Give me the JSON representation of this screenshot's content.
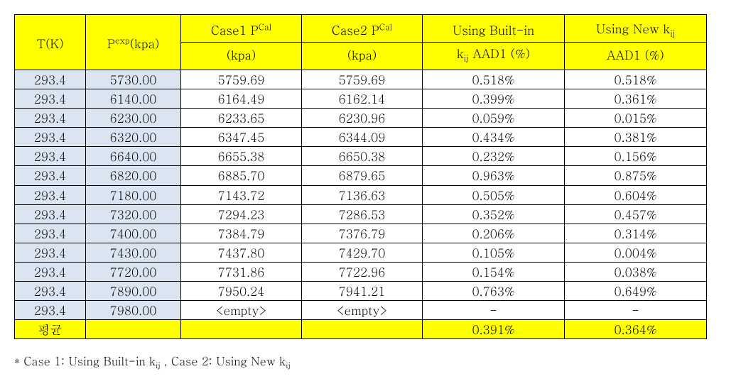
{
  "table": {
    "columns": [
      {
        "line1": "T(K)",
        "line2": ""
      },
      {
        "line1": "Pexp(kpa)",
        "line2": ""
      },
      {
        "line1": "Case1 PCal",
        "line2": "(kpa)"
      },
      {
        "line1": "Case2 PCal",
        "line2": "(kpa)"
      },
      {
        "line1": "Using Built-in",
        "line2": "kij AAD1 (%)"
      },
      {
        "line1": "Using New kij",
        "line2": "AAD1 (%)"
      }
    ],
    "header_html": {
      "c1_l1": "T(K)",
      "c2_l1": "P<sup>exp</sup>(kpa)",
      "c3_l1": "Case1 P<sup>Cal</sup>",
      "c3_l2": "(kpa)",
      "c4_l1": "Case2 P<sup>Cal</sup>",
      "c4_l2": "(kpa)",
      "c5_l1": "Using Built-in",
      "c5_l2": "k<sub>ij</sub> AAD1 (%)",
      "c6_l1": "Using New k<sub>ij</sub>",
      "c6_l2": "AAD1 (%)"
    },
    "rows": [
      [
        "293.4",
        "5730.00",
        "5759.69",
        "5759.69",
        "0.518%",
        "0.518%"
      ],
      [
        "293.4",
        "6140.00",
        "6164.49",
        "6162.14",
        "0.399%",
        "0.361%"
      ],
      [
        "293.4",
        "6230.00",
        "6233.65",
        "6230.96",
        "0.059%",
        "0.015%"
      ],
      [
        "293.4",
        "6320.00",
        "6347.45",
        "6344.09",
        "0.434%",
        "0.381%"
      ],
      [
        "293.4",
        "6640.00",
        "6655.38",
        "6650.38",
        "0.232%",
        "0.156%"
      ],
      [
        "293.4",
        "6820.00",
        "6885.70",
        "6879.65",
        "0.963%",
        "0.875%"
      ],
      [
        "293.4",
        "7180.00",
        "7143.72",
        "7136.63",
        "0.505%",
        "0.604%"
      ],
      [
        "293.4",
        "7320.00",
        "7294.23",
        "7286.53",
        "0.352%",
        "0.457%"
      ],
      [
        "293.4",
        "7400.00",
        "7384.79",
        "7376.79",
        "0.206%",
        "0.314%"
      ],
      [
        "293.4",
        "7430.00",
        "7437.80",
        "7429.70",
        "0.105%",
        "0.004%"
      ],
      [
        "293.4",
        "7720.00",
        "7731.86",
        "7722.96",
        "0.154%",
        "0.038%"
      ],
      [
        "293.4",
        "7890.00",
        "7950.24",
        "7941.21",
        "0.763%",
        "0.649%"
      ],
      [
        "293.4",
        "7980.00",
        "<empty>",
        "<empty>",
        "-",
        "-"
      ]
    ],
    "avg_row": [
      "평균",
      "",
      "",
      "",
      "0.391%",
      "0.364%"
    ],
    "shaded_cols": [
      0,
      1
    ],
    "colors": {
      "header_bg": "#ffff00",
      "avg_bg": "#ffff00",
      "shade_bg": "#dbe5f1",
      "border": "#000000",
      "text": "#000000",
      "background": "#ffffff"
    },
    "font_size_pt": 13
  },
  "footnote": {
    "text": "* Case 1: Using Built-in kij , Case 2: Using New kij",
    "html": "* Case 1: Using Built-in k<sub>ij</sub> , Case 2: Using New k<sub>ij</sub>"
  }
}
